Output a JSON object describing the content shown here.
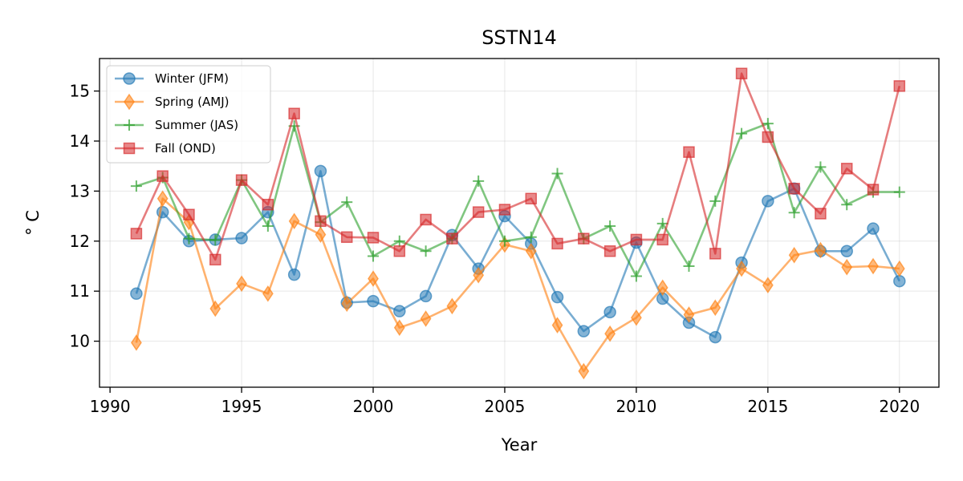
{
  "chart_data": {
    "type": "line",
    "title": "SSTN14",
    "xlabel": "Year",
    "ylabel": "$^\\circ$C",
    "ylabel_display": "° C",
    "xlim": [
      1989.6,
      2021.5
    ],
    "ylim": [
      9.08,
      15.65
    ],
    "xticks": [
      1990,
      1995,
      2000,
      2005,
      2010,
      2015,
      2020
    ],
    "yticks": [
      10,
      11,
      12,
      13,
      14,
      15
    ],
    "grid": true,
    "legend_position": "top-left",
    "x": [
      1991,
      1992,
      1993,
      1994,
      1995,
      1996,
      1997,
      1998,
      1999,
      2000,
      2001,
      2002,
      2003,
      2004,
      2005,
      2006,
      2007,
      2008,
      2009,
      2010,
      2011,
      2012,
      2013,
      2014,
      2015,
      2016,
      2017,
      2018,
      2019,
      2020
    ],
    "series": [
      {
        "name": "Winter (JFM)",
        "color": "#1f77b4",
        "marker": "circle",
        "values": [
          10.95,
          12.58,
          12.0,
          12.03,
          12.06,
          12.58,
          11.33,
          13.4,
          10.77,
          10.8,
          10.6,
          10.9,
          12.12,
          11.45,
          12.5,
          11.95,
          10.88,
          10.2,
          10.58,
          11.97,
          10.85,
          10.37,
          10.08,
          11.57,
          12.8,
          13.05,
          11.8,
          11.8,
          12.25,
          11.2
        ]
      },
      {
        "name": "Spring (AMJ)",
        "color": "#ff7f0e",
        "marker": "diamond",
        "values": [
          9.97,
          12.85,
          12.38,
          10.65,
          11.15,
          10.95,
          12.4,
          12.13,
          10.75,
          11.25,
          10.27,
          10.45,
          10.7,
          11.32,
          11.93,
          11.8,
          10.32,
          9.4,
          10.15,
          10.47,
          11.07,
          10.53,
          10.67,
          11.45,
          11.12,
          11.72,
          11.82,
          11.48,
          11.5,
          11.45
        ]
      },
      {
        "name": "Summer (JAS)",
        "color": "#2ca02c",
        "marker": "plus",
        "values": [
          13.1,
          13.27,
          12.05,
          12.02,
          13.22,
          12.3,
          14.3,
          12.38,
          12.78,
          11.7,
          12.0,
          11.8,
          12.05,
          13.2,
          12.0,
          12.08,
          13.35,
          12.05,
          12.3,
          11.3,
          12.35,
          11.5,
          12.8,
          14.15,
          14.35,
          12.57,
          13.48,
          12.73,
          12.98,
          12.98
        ]
      },
      {
        "name": "Fall (OND)",
        "color": "#d62728",
        "marker": "square",
        "values": [
          12.15,
          13.3,
          12.53,
          11.63,
          13.22,
          12.73,
          14.55,
          12.4,
          12.08,
          12.07,
          11.8,
          12.43,
          12.05,
          12.58,
          12.63,
          12.85,
          11.95,
          12.05,
          11.8,
          12.03,
          12.03,
          13.78,
          11.75,
          15.35,
          14.08,
          13.05,
          12.55,
          13.45,
          13.03,
          15.1
        ]
      }
    ]
  }
}
